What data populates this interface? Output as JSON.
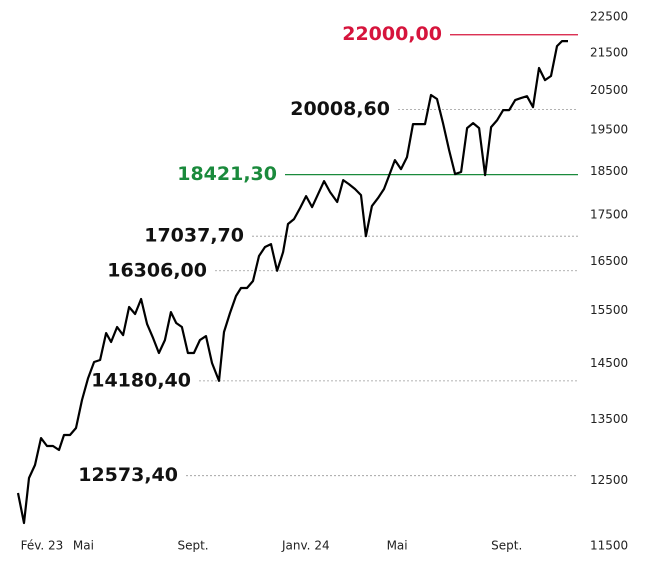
{
  "chart_data": {
    "type": "line",
    "yscale": "log",
    "ylim": [
      11500,
      22500
    ],
    "yticks": [
      22500,
      21500,
      20500,
      19500,
      18500,
      17500,
      16500,
      15500,
      14500,
      13500,
      12500,
      11500
    ],
    "xlim": [
      1.9,
      22.94
    ],
    "xticks": [
      {
        "value": 2,
        "label": "Fév. 23"
      },
      {
        "value": 4,
        "label": "Mai"
      },
      {
        "value": 8,
        "label": "Sept."
      },
      {
        "value": 12,
        "label": "Janv. 24"
      },
      {
        "value": 16,
        "label": "Mai"
      },
      {
        "value": 20,
        "label": "Sept."
      }
    ],
    "color": "#000000",
    "x": [
      1.9,
      2.13,
      2.32,
      2.55,
      2.78,
      3.01,
      3.24,
      3.47,
      3.66,
      3.89,
      4.12,
      4.35,
      4.58,
      4.81,
      5.04,
      5.27,
      5.46,
      5.69,
      5.92,
      6.15,
      6.38,
      6.61,
      6.84,
      7.07,
      7.29,
      7.52,
      7.75,
      7.95,
      8.17,
      8.4,
      8.63,
      8.86,
      9.09,
      9.32,
      9.59,
      9.78,
      10.01,
      10.24,
      10.43,
      10.66,
      10.89,
      11.12,
      11.35,
      11.58,
      11.81,
      12.04,
      12.23,
      12.46,
      12.69,
      12.92,
      13.15,
      13.38,
      13.61,
      13.84,
      14.11,
      14.34,
      14.56,
      14.79,
      15.02,
      15.21,
      15.44,
      15.67,
      15.9,
      16.09,
      16.32,
      16.55,
      16.78,
      17.01,
      17.24,
      17.47,
      17.7,
      17.93,
      18.16,
      18.39,
      18.62,
      18.85,
      19.08,
      19.31,
      19.54,
      19.77,
      20.0,
      20.23,
      20.46,
      20.69,
      20.92,
      21.14,
      21.37,
      21.6,
      21.83,
      22.06,
      22.29,
      22.52,
      22.71,
      22.94
    ],
    "values": [
      12300,
      11840,
      12536,
      12744,
      13188,
      13055,
      13055,
      12989,
      13239,
      13239,
      13357,
      13840,
      14231,
      14523,
      14560,
      15067,
      14897,
      15183,
      15029,
      15573,
      15435,
      15732,
      15240,
      14972,
      14690,
      14934,
      15474,
      15260,
      15183,
      14690,
      14690,
      14934,
      15010,
      14505,
      14180,
      15087,
      15455,
      15792,
      15953,
      15953,
      16095,
      16614,
      16805,
      16868,
      16306,
      16697,
      17302,
      17411,
      17657,
      17927,
      17679,
      17972,
      18271,
      18017,
      17792,
      18295,
      18202,
      18088,
      17949,
      17038,
      17701,
      17881,
      18088,
      18387,
      18765,
      18552,
      18836,
      19642,
      19642,
      19642,
      20379,
      20276,
      19667,
      19005,
      18435,
      18482,
      19542,
      19667,
      19542,
      18411,
      19567,
      19741,
      19994,
      19994,
      20249,
      20300,
      20350,
      20070,
      21089,
      20770,
      20876,
      21685,
      21822,
      21822
    ],
    "levels": [
      {
        "value": 22000,
        "label": "22000,00",
        "color": "#d6143c",
        "style": "solid"
      },
      {
        "value": 20008.6,
        "label": "20008,60",
        "color": "#111111",
        "style": "dashed"
      },
      {
        "value": 18421.3,
        "label": "18421,30",
        "color": "#1a8a3c",
        "style": "solid"
      },
      {
        "value": 17037.7,
        "label": "17037,70",
        "color": "#111111",
        "style": "dashed"
      },
      {
        "value": 16306,
        "label": "16306,00",
        "color": "#111111",
        "style": "dashed"
      },
      {
        "value": 14180.4,
        "label": "14180,40",
        "color": "#111111",
        "style": "dashed"
      },
      {
        "value": 12573.4,
        "label": "12573,40",
        "color": "#111111",
        "style": "dashed"
      }
    ]
  }
}
